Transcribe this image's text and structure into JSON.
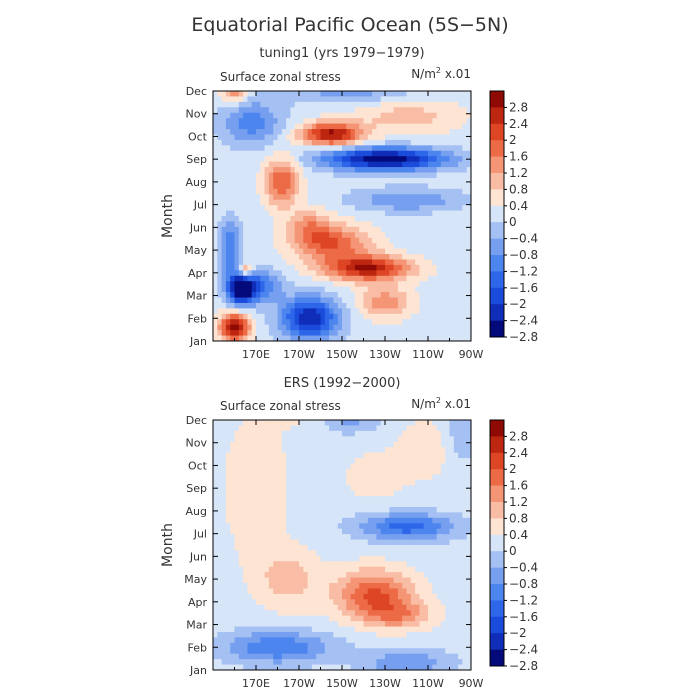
{
  "figure": {
    "title": "Equatorial Pacific Ocean (5S−5N)"
  },
  "chart_data": [
    {
      "type": "heatmap",
      "title": "tuning1 (yrs 1979−1979)",
      "variable_label": "Surface zonal stress",
      "units_label": "N/m² x.01",
      "ylabel": "Month",
      "xlabel": "",
      "x_ticks": [
        "170E",
        "170W",
        "150W",
        "130W",
        "110W",
        "90W"
      ],
      "x_tick_lon": [
        170,
        190,
        210,
        230,
        250,
        270
      ],
      "xlim_lon": [
        150,
        270
      ],
      "y_ticks": [
        "Jan",
        "Feb",
        "Mar",
        "Apr",
        "May",
        "Jun",
        "Jul",
        "Aug",
        "Sep",
        "Oct",
        "Nov",
        "Dec"
      ],
      "clim": [
        -3,
        3
      ],
      "colorbar_ticks": [
        "2.8",
        "2.4",
        "2",
        "1.6",
        "1.2",
        "0.8",
        "0.4",
        "0",
        "−0.4",
        "−0.8",
        "−1.2",
        "−1.6",
        "−2",
        "−2.4",
        "−2.8"
      ],
      "features": [
        {
          "lon": 160,
          "month": 0.6,
          "value": 3.0,
          "slon": 7,
          "smon": 0.6
        },
        {
          "lon": 163,
          "month": 2.3,
          "value": -3.2,
          "slon": 6,
          "smon": 0.7
        },
        {
          "lon": 195,
          "month": 1.0,
          "value": -2.6,
          "slon": 13,
          "smon": 0.9
        },
        {
          "lon": 172,
          "month": 2.4,
          "value": -1.4,
          "slon": 10,
          "smon": 0.7
        },
        {
          "lon": 230,
          "month": 1.7,
          "value": 1.3,
          "slon": 12,
          "smon": 0.7
        },
        {
          "lon": 222,
          "month": 3.2,
          "value": 2.6,
          "slon": 20,
          "smon": 0.55
        },
        {
          "lon": 205,
          "month": 4.3,
          "value": 1.8,
          "slon": 18,
          "smon": 0.8
        },
        {
          "lon": 195,
          "month": 5.1,
          "value": 1.0,
          "slon": 10,
          "smon": 0.7
        },
        {
          "lon": 158,
          "month": 4.1,
          "value": -1.4,
          "slon": 5,
          "smon": 1.2
        },
        {
          "lon": 165,
          "month": 3.1,
          "value": 1.7,
          "slon": 3.5,
          "smon": 0.35
        },
        {
          "lon": 240,
          "month": 6.2,
          "value": -1.0,
          "slon": 25,
          "smon": 0.5
        },
        {
          "lon": 182,
          "month": 7.0,
          "value": 1.8,
          "slon": 8,
          "smon": 1.1
        },
        {
          "lon": 230,
          "month": 8.0,
          "value": -3.0,
          "slon": 28,
          "smon": 0.5
        },
        {
          "lon": 205,
          "month": 9.1,
          "value": 2.7,
          "slon": 14,
          "smon": 0.5
        },
        {
          "lon": 240,
          "month": 9.9,
          "value": 0.8,
          "slon": 25,
          "smon": 0.8
        },
        {
          "lon": 168,
          "month": 9.6,
          "value": -1.2,
          "slon": 14,
          "smon": 1.0
        },
        {
          "lon": 160,
          "month": 11.0,
          "value": 1.5,
          "slon": 6,
          "smon": 0.5
        },
        {
          "lon": 215,
          "month": 11.0,
          "value": -0.8,
          "slon": 30,
          "smon": 0.6
        }
      ]
    },
    {
      "type": "heatmap",
      "title": "ERS (1992−2000)",
      "variable_label": "Surface zonal stress",
      "units_label": "N/m² x.01",
      "ylabel": "Month",
      "xlabel": "",
      "x_ticks": [
        "170E",
        "170W",
        "150W",
        "130W",
        "110W",
        "90W"
      ],
      "x_tick_lon": [
        170,
        190,
        210,
        230,
        250,
        270
      ],
      "xlim_lon": [
        150,
        270
      ],
      "y_ticks": [
        "Jan",
        "Feb",
        "Mar",
        "Apr",
        "May",
        "Jun",
        "Jul",
        "Aug",
        "Sep",
        "Oct",
        "Nov",
        "Dec"
      ],
      "clim": [
        -3,
        3
      ],
      "colorbar_ticks": [
        "2.8",
        "2.4",
        "2",
        "1.6",
        "1.2",
        "0.8",
        "0.4",
        "0",
        "−0.4",
        "−0.8",
        "−1.2",
        "−1.6",
        "−2",
        "−2.4",
        "−2.8"
      ],
      "features": [
        {
          "lon": 180,
          "month": 1.0,
          "value": -1.4,
          "slon": 25,
          "smon": 0.7
        },
        {
          "lon": 240,
          "month": 0.3,
          "value": -1.0,
          "slon": 20,
          "smon": 0.6
        },
        {
          "lon": 225,
          "month": 3.3,
          "value": 1.9,
          "slon": 18,
          "smon": 1.1
        },
        {
          "lon": 238,
          "month": 2.4,
          "value": 1.0,
          "slon": 15,
          "smon": 0.6
        },
        {
          "lon": 185,
          "month": 4.0,
          "value": 0.8,
          "slon": 15,
          "smon": 1.3
        },
        {
          "lon": 170,
          "month": 8.0,
          "value": 0.6,
          "slon": 14,
          "smon": 3.0
        },
        {
          "lon": 200,
          "month": 11.2,
          "value": 0.4,
          "slon": 20,
          "smon": 0.8
        },
        {
          "lon": 240,
          "month": 6.3,
          "value": -1.6,
          "slon": 22,
          "smon": 0.6
        },
        {
          "lon": 225,
          "month": 8.5,
          "value": 0.4,
          "slon": 16,
          "smon": 1.2
        },
        {
          "lon": 212,
          "month": 11.0,
          "value": -0.9,
          "slon": 15,
          "smon": 0.6
        },
        {
          "lon": 250,
          "month": 9.8,
          "value": 0.5,
          "slon": 14,
          "smon": 1.3
        },
        {
          "lon": 265,
          "month": 10.5,
          "value": -0.6,
          "slon": 8,
          "smon": 1.5
        }
      ]
    }
  ]
}
